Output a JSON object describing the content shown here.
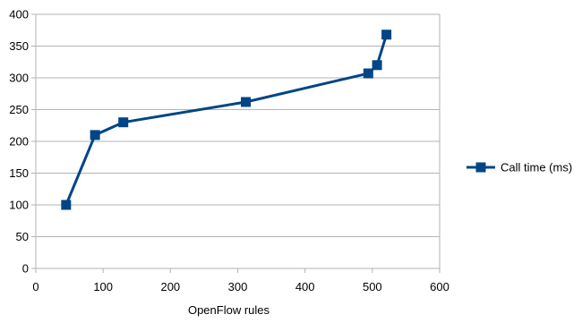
{
  "chart_data": {
    "type": "line",
    "title": "",
    "xlabel": "OpenFlow rules",
    "ylabel": "",
    "xlim": [
      0,
      600
    ],
    "ylim": [
      0,
      400
    ],
    "x_ticks": [
      0,
      100,
      200,
      300,
      400,
      500,
      600
    ],
    "y_ticks": [
      0,
      50,
      100,
      150,
      200,
      250,
      300,
      350,
      400
    ],
    "grid": "horizontal",
    "legend_position": "right",
    "series": [
      {
        "name": "Call time (ms)",
        "color": "#004586",
        "marker": "square",
        "x": [
          45,
          88,
          130,
          312,
          494,
          507,
          521
        ],
        "y": [
          100,
          210,
          230,
          262,
          307,
          320,
          368
        ]
      }
    ]
  }
}
